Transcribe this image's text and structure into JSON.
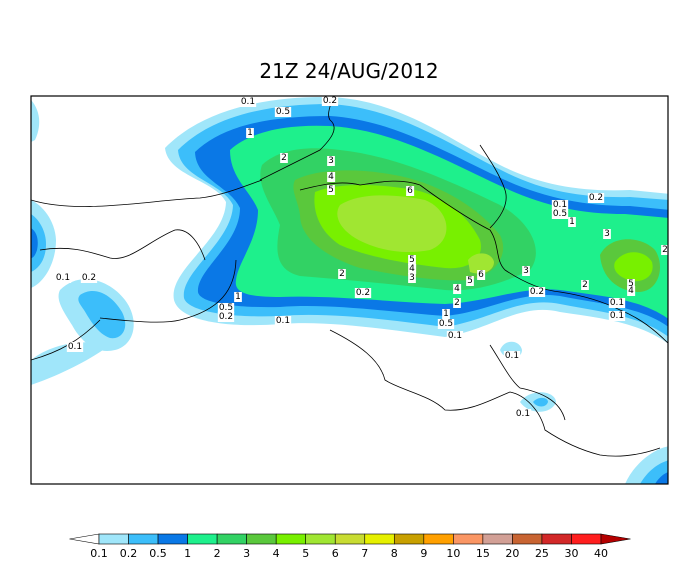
{
  "title": "21Z 24/AUG/2012",
  "colorbar": {
    "labels": [
      0.1,
      0.2,
      0.5,
      1,
      2,
      3,
      4,
      5,
      6,
      7,
      8,
      9,
      10,
      15,
      20,
      25,
      30,
      40
    ],
    "colors": [
      "#ffffff",
      "#a0e6fa",
      "#3cbefa",
      "#0a78e6",
      "#1ef08c",
      "#32d264",
      "#5ac83c",
      "#78f000",
      "#a0e632",
      "#c8dc32",
      "#e6f000",
      "#c8a000",
      "#ffa000",
      "#fa9664",
      "#d2a096",
      "#c86432",
      "#d22828",
      "#ff1e1e",
      "#b40000"
    ]
  },
  "contour_labels": [
    0.1,
    0.5,
    0.2,
    1,
    2,
    3,
    4,
    5,
    6,
    0.1,
    0.5,
    0.2,
    1,
    3,
    2,
    5,
    4,
    0.1,
    0.1,
    2,
    3,
    2,
    5,
    4,
    3,
    5,
    6,
    4,
    2,
    0.2,
    0.2,
    1,
    0.5,
    0.2,
    0.1,
    1,
    0.5,
    0.1,
    0.1,
    0.2,
    0.1,
    0.1,
    0.1
  ]
}
